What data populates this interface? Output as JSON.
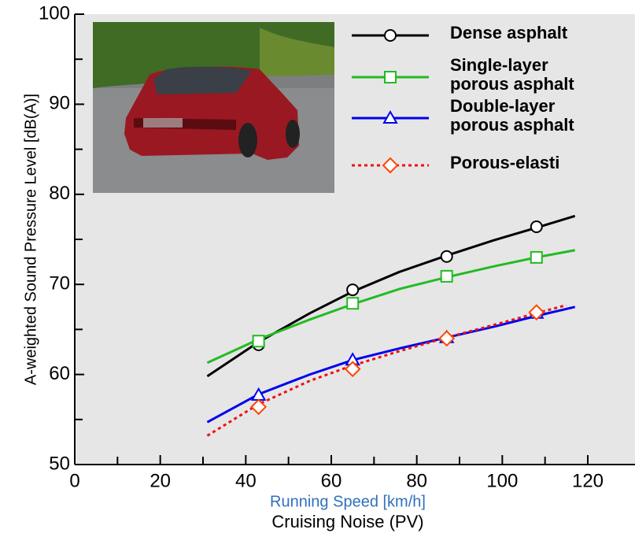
{
  "chart_data": {
    "type": "line",
    "title": "Cruising Noise (PV)",
    "x_label": "Running Speed [km/h]",
    "y_label": "A-weighted Sound Pressure Level [dB(A)]",
    "xlim": [
      0,
      126
    ],
    "ylim": [
      50,
      100
    ],
    "xticks": [
      0,
      20,
      40,
      60,
      80,
      100,
      120
    ],
    "x_minor_ticks": [
      10,
      30,
      50,
      70,
      90,
      110
    ],
    "yticks": [
      50,
      60,
      70,
      80,
      90,
      100
    ],
    "y_minor_ticks": [
      55,
      65,
      75,
      85,
      95
    ],
    "series": [
      {
        "name": [
          "Dense asphalt"
        ],
        "color": "#000000",
        "marker": "circle",
        "dash": false,
        "x": [
          43,
          65,
          87,
          108
        ],
        "values": [
          63.3,
          69.4,
          73.1,
          76.4
        ],
        "curve": {
          "x": [
            31,
            43,
            55,
            65,
            76,
            87,
            98,
            108,
            117
          ],
          "values": [
            59.8,
            63.6,
            66.8,
            69.2,
            71.4,
            73.2,
            74.9,
            76.3,
            77.6
          ]
        }
      },
      {
        "name": [
          "Single-layer",
          "porous asphalt"
        ],
        "color": "#22bb22",
        "marker": "square",
        "dash": false,
        "x": [
          43,
          65,
          87,
          108
        ],
        "values": [
          63.7,
          67.9,
          70.9,
          73.0
        ],
        "curve": {
          "x": [
            31,
            43,
            55,
            65,
            76,
            87,
            98,
            108,
            117
          ],
          "values": [
            61.3,
            63.9,
            66.1,
            67.8,
            69.5,
            70.8,
            72.0,
            73.0,
            73.8
          ]
        }
      },
      {
        "name": [
          "Double-layer",
          "porous asphalt"
        ],
        "color": "#0000ee",
        "marker": "triangle",
        "dash": false,
        "x": [
          43,
          65,
          87,
          108
        ],
        "values": [
          57.7,
          61.6,
          64.1,
          66.8
        ],
        "curve": {
          "x": [
            31,
            43,
            55,
            65,
            76,
            87,
            98,
            108,
            117
          ],
          "values": [
            54.7,
            57.8,
            60.0,
            61.6,
            62.9,
            64.1,
            65.3,
            66.5,
            67.5
          ]
        }
      },
      {
        "name": [
          "Porous-elasti"
        ],
        "color": "#ee1111",
        "marker": "diamond",
        "dash": true,
        "x": [
          43,
          65,
          87,
          108
        ],
        "values": [
          56.4,
          60.6,
          64.0,
          66.9
        ],
        "curve": {
          "x": [
            31,
            43,
            55,
            65,
            76,
            87,
            98,
            108,
            115
          ],
          "values": [
            53.2,
            56.7,
            59.3,
            61.0,
            62.6,
            64.1,
            65.5,
            66.8,
            67.7
          ]
        }
      }
    ]
  }
}
